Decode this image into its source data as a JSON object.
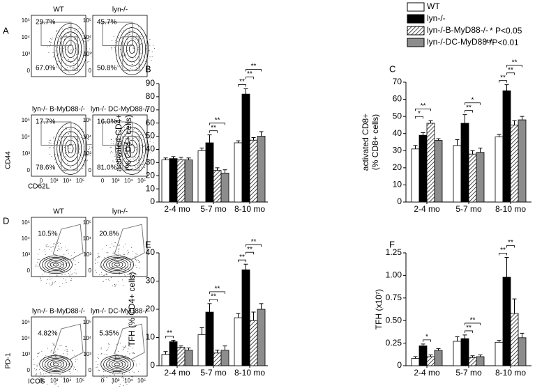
{
  "legend": {
    "notes": [
      "* P<0.05",
      "**P<0.01"
    ]
  },
  "flow_panels": [
    {
      "label": "A",
      "x_axis": "CD62L",
      "y_axis": "CD44",
      "ticks": [
        "0",
        "10³",
        "10⁴",
        "10⁵"
      ],
      "plots": [
        {
          "title": "WT",
          "gates": [
            "29.7%",
            "67.0%"
          ]
        },
        {
          "title": "lyn-/-",
          "gates": [
            "45.7%",
            "50.8%"
          ]
        },
        {
          "title": "lyn-/- B-MyD88-/-",
          "gates": [
            "17.7%",
            "78.6%"
          ]
        },
        {
          "title": "lyn-/- DC-MyD88-/-",
          "gates": [
            "16.0%",
            "81.0%"
          ]
        }
      ]
    },
    {
      "label": "D",
      "x_axis": "ICOS",
      "y_axis": "PD-1",
      "ticks": [
        "0",
        "10³",
        "10⁴",
        "10⁵"
      ],
      "plots": [
        {
          "title": "WT",
          "gates": [
            "10.5%"
          ]
        },
        {
          "title": "lyn-/-",
          "gates": [
            "20.8%"
          ]
        },
        {
          "title": "lyn-/- B-MyD88-/-",
          "gates": [
            "4.82%"
          ]
        },
        {
          "title": "lyn-/- DC-MyD88-/-",
          "gates": [
            "5.35%"
          ]
        }
      ]
    }
  ],
  "chart_data": [
    {
      "type": "bar",
      "label": "B",
      "ylabel": [
        "activated CD4+",
        "(% CD4+ cells)"
      ],
      "categories": [
        "2-4 mo",
        "5-7 mo",
        "8-10 mo"
      ],
      "ylim": [
        0,
        90
      ],
      "yticks": [
        0,
        10,
        20,
        30,
        40,
        50,
        60,
        70,
        80,
        90
      ],
      "series": [
        {
          "name": "WT",
          "color": "#ffffff",
          "hatch": false,
          "values": [
            32,
            39,
            45
          ],
          "errors": [
            1.5,
            2,
            1.5
          ]
        },
        {
          "name": "lyn-/-",
          "color": "#000000",
          "hatch": false,
          "values": [
            33,
            45,
            82
          ],
          "errors": [
            1.5,
            6,
            4
          ]
        },
        {
          "name": "lyn-/-B-MyD88-/-",
          "color": "#ffffff",
          "hatch": true,
          "values": [
            32,
            24,
            47
          ],
          "errors": [
            2,
            2,
            2
          ]
        },
        {
          "name": "lyn-/-DC-MyD88-/-",
          "color": "#8c8c8c",
          "hatch": false,
          "values": [
            32,
            22,
            50
          ],
          "errors": [
            1.5,
            2.5,
            3.5
          ]
        }
      ],
      "comparisons": [
        {
          "category": "5-7 mo",
          "between": [
            "lyn-/-",
            "lyn-/-B-MyD88-/-"
          ],
          "label": "**"
        },
        {
          "category": "5-7 mo",
          "between": [
            "lyn-/-",
            "lyn-/-DC-MyD88-/-"
          ],
          "label": "**"
        },
        {
          "category": "8-10 mo",
          "between": [
            "WT",
            "lyn-/-"
          ],
          "label": "**"
        },
        {
          "category": "8-10 mo",
          "between": [
            "lyn-/-",
            "lyn-/-B-MyD88-/-"
          ],
          "label": "**"
        },
        {
          "category": "8-10 mo",
          "between": [
            "lyn-/-",
            "lyn-/-DC-MyD88-/-"
          ],
          "label": "**"
        }
      ]
    },
    {
      "type": "bar",
      "label": "C",
      "ylabel": [
        "activated CD8+",
        "(% CD8+ cells)"
      ],
      "categories": [
        "2-4 mo",
        "5-7 mo",
        "8-10 mo"
      ],
      "ylim": [
        0,
        70
      ],
      "yticks": [
        0,
        10,
        20,
        30,
        40,
        50,
        60,
        70
      ],
      "series": [
        {
          "name": "WT",
          "color": "#ffffff",
          "hatch": false,
          "values": [
            31,
            33,
            38
          ],
          "errors": [
            2,
            3.5,
            1.5
          ]
        },
        {
          "name": "lyn-/-",
          "color": "#000000",
          "hatch": false,
          "values": [
            39,
            46,
            65
          ],
          "errors": [
            1.5,
            5,
            3.5
          ]
        },
        {
          "name": "lyn-/-B-MyD88-/-",
          "color": "#ffffff",
          "hatch": true,
          "values": [
            46,
            28,
            45
          ],
          "errors": [
            1.5,
            2,
            2.5
          ]
        },
        {
          "name": "lyn-/-DC-MyD88-/-",
          "color": "#8c8c8c",
          "hatch": false,
          "values": [
            36,
            29,
            48
          ],
          "errors": [
            1,
            2.5,
            2
          ]
        }
      ],
      "comparisons": [
        {
          "category": "2-4 mo",
          "between": [
            "WT",
            "lyn-/-"
          ],
          "label": "*"
        },
        {
          "category": "2-4 mo",
          "between": [
            "WT",
            "lyn-/-B-MyD88-/-"
          ],
          "label": "**"
        },
        {
          "category": "5-7 mo",
          "between": [
            "lyn-/-",
            "lyn-/-B-MyD88-/-"
          ],
          "label": "**"
        },
        {
          "category": "5-7 mo",
          "between": [
            "lyn-/-",
            "lyn-/-DC-MyD88-/-"
          ],
          "label": "*"
        },
        {
          "category": "8-10 mo",
          "between": [
            "WT",
            "lyn-/-"
          ],
          "label": "**"
        },
        {
          "category": "8-10 mo",
          "between": [
            "lyn-/-",
            "lyn-/-B-MyD88-/-"
          ],
          "label": "**"
        },
        {
          "category": "8-10 mo",
          "between": [
            "lyn-/-",
            "lyn-/-DC-MyD88-/-"
          ],
          "label": "**"
        }
      ]
    },
    {
      "type": "bar",
      "label": "E",
      "ylabel": [
        "TFH (% CD4+ cells)"
      ],
      "categories": [
        "2-4 mo",
        "5-7 mo",
        "8-10 mo"
      ],
      "ylim": [
        0,
        40
      ],
      "yticks": [
        0,
        10,
        20,
        30,
        40
      ],
      "series": [
        {
          "name": "WT",
          "color": "#ffffff",
          "hatch": false,
          "values": [
            4,
            11,
            17
          ],
          "errors": [
            1,
            2.5,
            1.5
          ]
        },
        {
          "name": "lyn-/-",
          "color": "#000000",
          "hatch": false,
          "values": [
            8.5,
            19,
            34
          ],
          "errors": [
            0.5,
            3,
            2
          ]
        },
        {
          "name": "lyn-/-B-MyD88-/-",
          "color": "#ffffff",
          "hatch": true,
          "values": [
            6.5,
            4.5,
            16
          ],
          "errors": [
            0.5,
            1,
            3
          ]
        },
        {
          "name": "lyn-/-DC-MyD88-/-",
          "color": "#8c8c8c",
          "hatch": false,
          "values": [
            5.5,
            5.5,
            20
          ],
          "errors": [
            0.8,
            1.5,
            2
          ]
        }
      ],
      "comparisons": [
        {
          "category": "2-4 mo",
          "between": [
            "WT",
            "lyn-/-"
          ],
          "label": "**"
        },
        {
          "category": "5-7 mo",
          "between": [
            "lyn-/-",
            "lyn-/-B-MyD88-/-"
          ],
          "label": "**"
        },
        {
          "category": "5-7 mo",
          "between": [
            "lyn-/-",
            "lyn-/-DC-MyD88-/-"
          ],
          "label": "**"
        },
        {
          "category": "8-10 mo",
          "between": [
            "WT",
            "lyn-/-"
          ],
          "label": "**"
        },
        {
          "category": "8-10 mo",
          "between": [
            "lyn-/-",
            "lyn-/-B-MyD88-/-"
          ],
          "label": "**"
        },
        {
          "category": "8-10 mo",
          "between": [
            "lyn-/-",
            "lyn-/-DC-MyD88-/-"
          ],
          "label": "**"
        }
      ]
    },
    {
      "type": "bar",
      "label": "F",
      "ylabel": [
        "TFH (x10⁷)"
      ],
      "categories": [
        "2-4 mo",
        "5-7 mo",
        "8-10 mo"
      ],
      "ylim": [
        0,
        1.25
      ],
      "yticks": [
        0,
        0.25,
        {
          "value": 0.5,
          "label": "0.50"
        },
        0.75,
        {
          "value": 1,
          "label": "1.00"
        },
        1.25
      ],
      "series": [
        {
          "name": "WT",
          "color": "#ffffff",
          "hatch": false,
          "values": [
            0.08,
            0.27,
            0.26
          ],
          "errors": [
            0.02,
            0.05,
            0.02
          ]
        },
        {
          "name": "lyn-/-",
          "color": "#000000",
          "hatch": false,
          "values": [
            0.22,
            0.3,
            0.98
          ],
          "errors": [
            0.02,
            0.04,
            0.22
          ]
        },
        {
          "name": "lyn-/-B-MyD88-/-",
          "color": "#ffffff",
          "hatch": true,
          "values": [
            0.1,
            0.09,
            0.58
          ],
          "errors": [
            0.02,
            0.02,
            0.16
          ]
        },
        {
          "name": "lyn-/-DC-MyD88-/-",
          "color": "#8c8c8c",
          "hatch": false,
          "values": [
            0.17,
            0.1,
            0.31
          ],
          "errors": [
            0.02,
            0.02,
            0.05
          ]
        }
      ],
      "comparisons": [
        {
          "category": "2-4 mo",
          "between": [
            "lyn-/-",
            "lyn-/-B-MyD88-/-"
          ],
          "label": "*"
        },
        {
          "category": "5-7 mo",
          "between": [
            "lyn-/-",
            "lyn-/-B-MyD88-/-"
          ],
          "label": "**"
        },
        {
          "category": "5-7 mo",
          "between": [
            "lyn-/-",
            "lyn-/-DC-MyD88-/-"
          ],
          "label": "**"
        },
        {
          "category": "8-10 mo",
          "between": [
            "WT",
            "lyn-/-"
          ],
          "label": "**"
        },
        {
          "category": "8-10 mo",
          "between": [
            "lyn-/-",
            "lyn-/-B-MyD88-/-"
          ],
          "label": "**"
        }
      ]
    }
  ]
}
